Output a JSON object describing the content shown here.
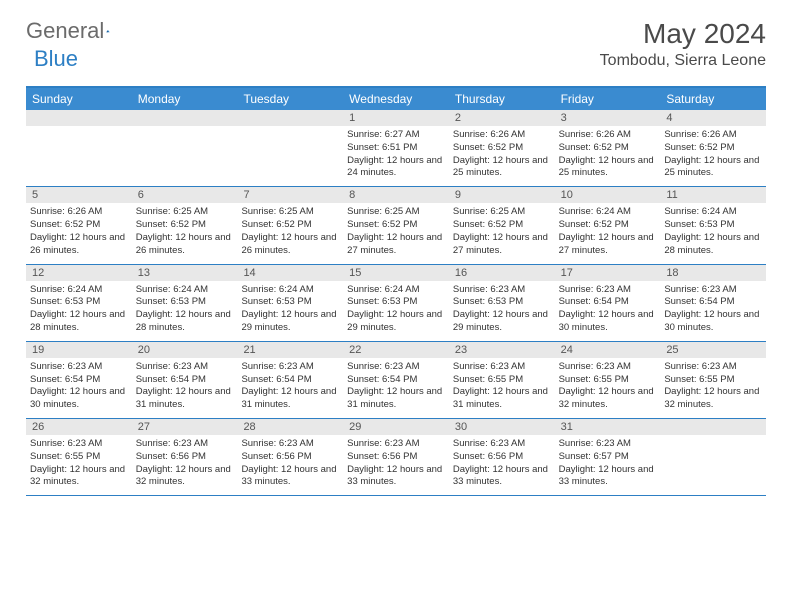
{
  "brand": {
    "part1": "General",
    "part2": "Blue"
  },
  "title": "May 2024",
  "location": "Tombodu, Sierra Leone",
  "colors": {
    "header_bg": "#3a8bd0",
    "border": "#2d7fc4",
    "daynum_bg": "#e8e8e8",
    "text_dark": "#333333",
    "text_gray": "#6b6b6b"
  },
  "day_headers": [
    "Sunday",
    "Monday",
    "Tuesday",
    "Wednesday",
    "Thursday",
    "Friday",
    "Saturday"
  ],
  "weeks": [
    [
      {
        "n": "",
        "sr": "",
        "ss": "",
        "dl": ""
      },
      {
        "n": "",
        "sr": "",
        "ss": "",
        "dl": ""
      },
      {
        "n": "",
        "sr": "",
        "ss": "",
        "dl": ""
      },
      {
        "n": "1",
        "sr": "6:27 AM",
        "ss": "6:51 PM",
        "dl": "12 hours and 24 minutes."
      },
      {
        "n": "2",
        "sr": "6:26 AM",
        "ss": "6:52 PM",
        "dl": "12 hours and 25 minutes."
      },
      {
        "n": "3",
        "sr": "6:26 AM",
        "ss": "6:52 PM",
        "dl": "12 hours and 25 minutes."
      },
      {
        "n": "4",
        "sr": "6:26 AM",
        "ss": "6:52 PM",
        "dl": "12 hours and 25 minutes."
      }
    ],
    [
      {
        "n": "5",
        "sr": "6:26 AM",
        "ss": "6:52 PM",
        "dl": "12 hours and 26 minutes."
      },
      {
        "n": "6",
        "sr": "6:25 AM",
        "ss": "6:52 PM",
        "dl": "12 hours and 26 minutes."
      },
      {
        "n": "7",
        "sr": "6:25 AM",
        "ss": "6:52 PM",
        "dl": "12 hours and 26 minutes."
      },
      {
        "n": "8",
        "sr": "6:25 AM",
        "ss": "6:52 PM",
        "dl": "12 hours and 27 minutes."
      },
      {
        "n": "9",
        "sr": "6:25 AM",
        "ss": "6:52 PM",
        "dl": "12 hours and 27 minutes."
      },
      {
        "n": "10",
        "sr": "6:24 AM",
        "ss": "6:52 PM",
        "dl": "12 hours and 27 minutes."
      },
      {
        "n": "11",
        "sr": "6:24 AM",
        "ss": "6:53 PM",
        "dl": "12 hours and 28 minutes."
      }
    ],
    [
      {
        "n": "12",
        "sr": "6:24 AM",
        "ss": "6:53 PM",
        "dl": "12 hours and 28 minutes."
      },
      {
        "n": "13",
        "sr": "6:24 AM",
        "ss": "6:53 PM",
        "dl": "12 hours and 28 minutes."
      },
      {
        "n": "14",
        "sr": "6:24 AM",
        "ss": "6:53 PM",
        "dl": "12 hours and 29 minutes."
      },
      {
        "n": "15",
        "sr": "6:24 AM",
        "ss": "6:53 PM",
        "dl": "12 hours and 29 minutes."
      },
      {
        "n": "16",
        "sr": "6:23 AM",
        "ss": "6:53 PM",
        "dl": "12 hours and 29 minutes."
      },
      {
        "n": "17",
        "sr": "6:23 AM",
        "ss": "6:54 PM",
        "dl": "12 hours and 30 minutes."
      },
      {
        "n": "18",
        "sr": "6:23 AM",
        "ss": "6:54 PM",
        "dl": "12 hours and 30 minutes."
      }
    ],
    [
      {
        "n": "19",
        "sr": "6:23 AM",
        "ss": "6:54 PM",
        "dl": "12 hours and 30 minutes."
      },
      {
        "n": "20",
        "sr": "6:23 AM",
        "ss": "6:54 PM",
        "dl": "12 hours and 31 minutes."
      },
      {
        "n": "21",
        "sr": "6:23 AM",
        "ss": "6:54 PM",
        "dl": "12 hours and 31 minutes."
      },
      {
        "n": "22",
        "sr": "6:23 AM",
        "ss": "6:54 PM",
        "dl": "12 hours and 31 minutes."
      },
      {
        "n": "23",
        "sr": "6:23 AM",
        "ss": "6:55 PM",
        "dl": "12 hours and 31 minutes."
      },
      {
        "n": "24",
        "sr": "6:23 AM",
        "ss": "6:55 PM",
        "dl": "12 hours and 32 minutes."
      },
      {
        "n": "25",
        "sr": "6:23 AM",
        "ss": "6:55 PM",
        "dl": "12 hours and 32 minutes."
      }
    ],
    [
      {
        "n": "26",
        "sr": "6:23 AM",
        "ss": "6:55 PM",
        "dl": "12 hours and 32 minutes."
      },
      {
        "n": "27",
        "sr": "6:23 AM",
        "ss": "6:56 PM",
        "dl": "12 hours and 32 minutes."
      },
      {
        "n": "28",
        "sr": "6:23 AM",
        "ss": "6:56 PM",
        "dl": "12 hours and 33 minutes."
      },
      {
        "n": "29",
        "sr": "6:23 AM",
        "ss": "6:56 PM",
        "dl": "12 hours and 33 minutes."
      },
      {
        "n": "30",
        "sr": "6:23 AM",
        "ss": "6:56 PM",
        "dl": "12 hours and 33 minutes."
      },
      {
        "n": "31",
        "sr": "6:23 AM",
        "ss": "6:57 PM",
        "dl": "12 hours and 33 minutes."
      },
      {
        "n": "",
        "sr": "",
        "ss": "",
        "dl": ""
      }
    ]
  ],
  "labels": {
    "sunrise": "Sunrise:",
    "sunset": "Sunset:",
    "daylight": "Daylight:"
  }
}
